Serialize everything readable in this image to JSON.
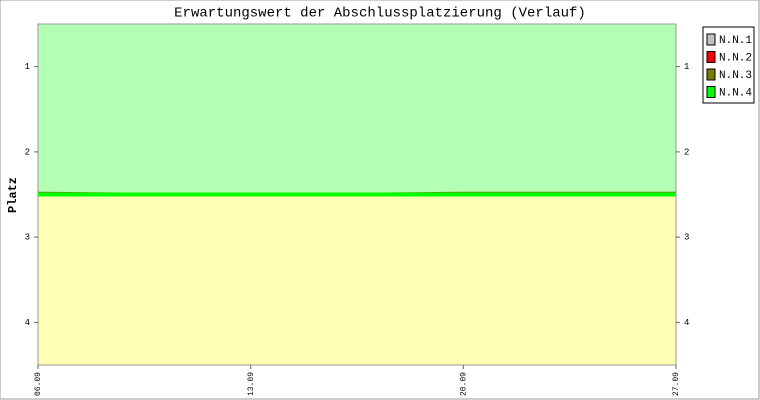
{
  "chart_data": {
    "type": "line",
    "title": "Erwartungswert der Abschlussplatzierung (Verlauf)",
    "y_label": "Platz",
    "categories": [
      "06.09",
      "13.09",
      "20.09",
      "27.09"
    ],
    "series": [
      {
        "name": "N.N.1",
        "color": "#c0c0c0",
        "values": [
          2.5,
          2.5,
          2.5,
          2.5
        ]
      },
      {
        "name": "N.N.2",
        "color": "#ff0000",
        "values": [
          2.5,
          2.5,
          2.5,
          2.5
        ]
      },
      {
        "name": "N.N.3",
        "color": "#7b7b00",
        "values": [
          2.48,
          2.5,
          2.48,
          2.48
        ]
      },
      {
        "name": "N.N.4",
        "color": "#00ff00",
        "values": [
          2.5,
          2.5,
          2.5,
          2.5
        ]
      }
    ],
    "bands": [
      {
        "from": 0.5,
        "to": 2.5,
        "color": "#b3ffb3"
      },
      {
        "from": 2.5,
        "to": 4.5,
        "color": "#ffffb3"
      }
    ],
    "ylim": [
      0.5,
      4.5
    ],
    "yticks": [
      1,
      2,
      3,
      4
    ],
    "y_inverted": true,
    "legend": "right"
  }
}
